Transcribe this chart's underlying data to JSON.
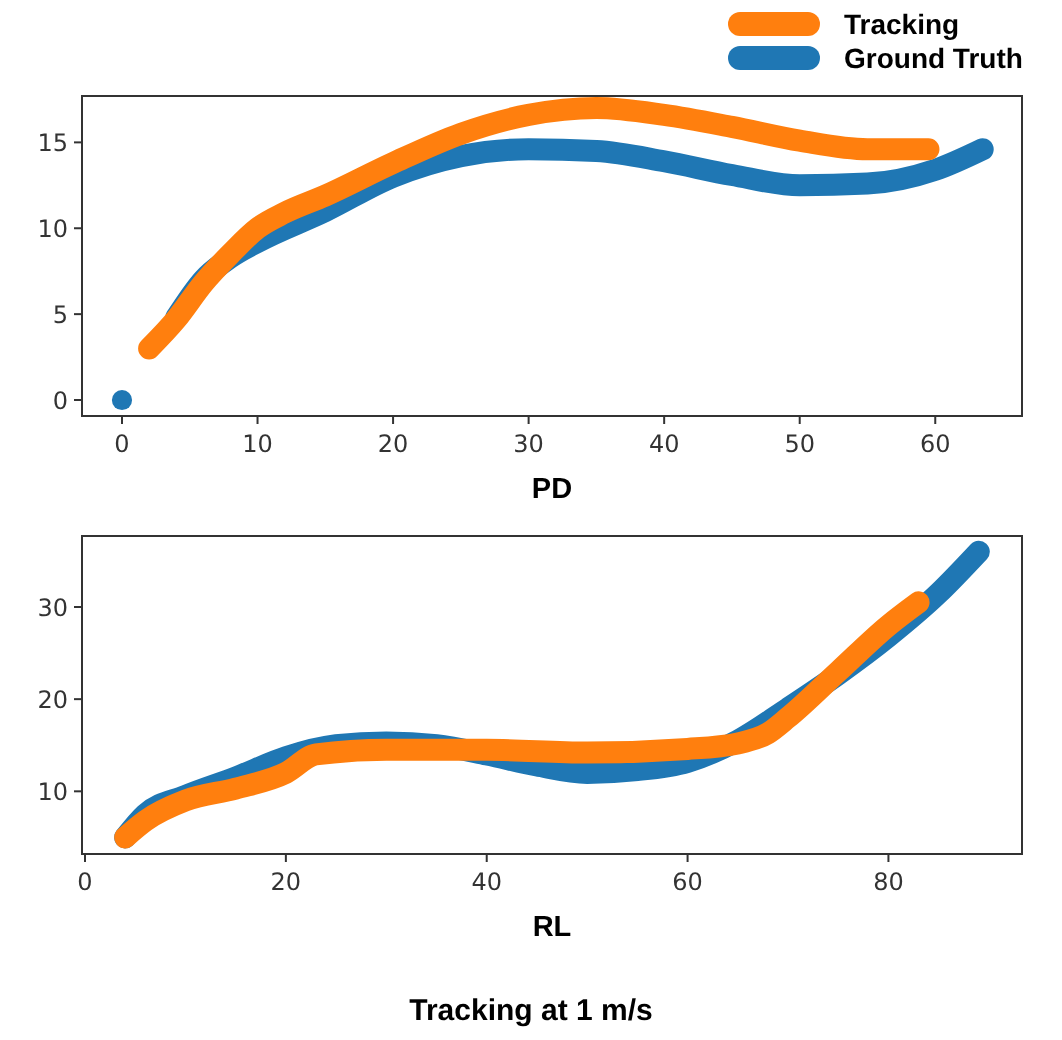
{
  "chart_data": [
    {
      "type": "line",
      "xlabel": "PD",
      "xlim": [
        -2.95,
        66.4
      ],
      "ylim": [
        -0.93,
        17.7
      ],
      "xticks": [
        0,
        10,
        20,
        30,
        40,
        50,
        60
      ],
      "yticks": [
        0,
        5,
        10,
        15
      ],
      "grid": false,
      "legend": "top right",
      "line_style": "solid",
      "series": [
        {
          "name": "Tracking",
          "color": "#ff7f0e",
          "x": [
            2,
            4,
            6,
            8,
            10,
            12,
            15,
            20,
            25,
            30,
            35,
            40,
            45,
            50,
            55,
            59.5
          ],
          "values": [
            3,
            4.7,
            6.8,
            8.5,
            10,
            10.9,
            11.9,
            13.8,
            15.5,
            16.6,
            17,
            16.6,
            15.9,
            15.1,
            14.6,
            14.6
          ]
        },
        {
          "name": "Ground Truth",
          "color": "#1f77b4",
          "x": [
            4,
            6,
            8,
            10,
            15,
            20,
            25,
            30,
            35,
            40,
            45,
            50,
            55,
            60,
            63.5
          ],
          "values": [
            4.8,
            7,
            8.3,
            9.2,
            11,
            13,
            14.2,
            14.6,
            14.5,
            13.9,
            13.1,
            12.5,
            12.6,
            13.4,
            14.6
          ]
        },
        {
          "type": "scatter",
          "color": "#1f77b4",
          "marker": "circle",
          "x": [
            0
          ],
          "values": [
            0
          ]
        }
      ]
    },
    {
      "type": "line",
      "xlabel": "RL",
      "xlim": [
        -0.3,
        93.3
      ],
      "ylim": [
        3.2,
        37.7
      ],
      "xticks": [
        0,
        20,
        40,
        60,
        80
      ],
      "yticks": [
        10,
        20,
        30
      ],
      "grid": false,
      "line_style": "solid",
      "annotations": [
        "Tracking at 1 m/s"
      ],
      "series": [
        {
          "color": "#ff7f0e",
          "x": [
            4,
            6,
            10,
            15,
            20,
            23,
            30,
            40,
            50,
            60,
            65,
            68,
            70,
            75,
            80,
            83
          ],
          "values": [
            5,
            6.8,
            9,
            10.3,
            12,
            14,
            14.5,
            14.5,
            14.2,
            14.6,
            15.2,
            16.3,
            18,
            23,
            28,
            30.5
          ]
        },
        {
          "color": "#1f77b4",
          "x": [
            4,
            6,
            10,
            15,
            20,
            25,
            30,
            35,
            40,
            45,
            50,
            55,
            60,
            65,
            70,
            75,
            80,
            85,
            89
          ],
          "values": [
            5,
            7.5,
            9.5,
            11.5,
            13.7,
            15,
            15.3,
            15,
            14,
            12.8,
            12,
            12.3,
            13.2,
            15.5,
            19,
            22.7,
            26.8,
            31.5,
            36
          ]
        }
      ]
    }
  ]
}
